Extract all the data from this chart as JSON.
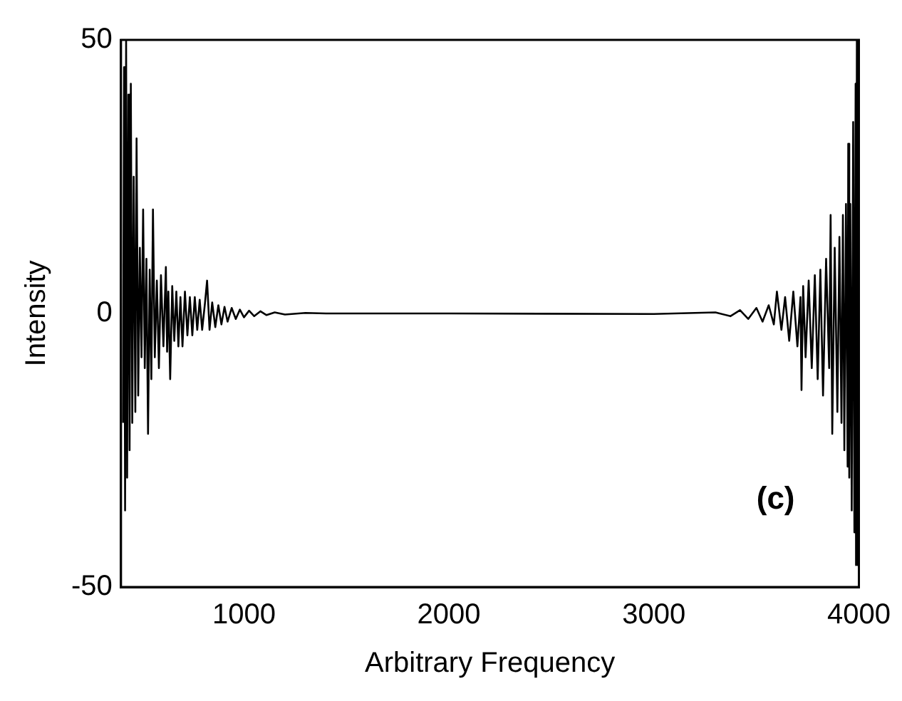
{
  "chart_data": {
    "type": "line",
    "xlabel": "Arbitrary Frequency",
    "ylabel": "Intensity",
    "annotations": [
      "(c)"
    ],
    "xlim": [
      400,
      4000
    ],
    "ylim": [
      -50,
      50
    ],
    "xticks": [
      1000,
      2000,
      3000,
      4000
    ],
    "yticks": [
      -50,
      0,
      50
    ],
    "grid": false,
    "legend": false,
    "marker": "none",
    "line_style": "solid",
    "series": [
      {
        "color": "#000000",
        "x": [
          410,
          415,
          420,
          425,
          430,
          436,
          442,
          448,
          455,
          462,
          470,
          476,
          484,
          492,
          500,
          508,
          516,
          524,
          532,
          540,
          548,
          556,
          565,
          575,
          585,
          595,
          607,
          619,
          625,
          631,
          640,
          650,
          660,
          670,
          680,
          690,
          700,
          712,
          724,
          736,
          748,
          760,
          772,
          784,
          796,
          810,
          820,
          832,
          845,
          860,
          875,
          890,
          905,
          920,
          940,
          960,
          980,
          1000,
          1025,
          1050,
          1080,
          1110,
          1150,
          1200,
          1300,
          1400,
          1600,
          2000,
          3000,
          3300,
          3373,
          3420,
          3460,
          3500,
          3530,
          3560,
          3585,
          3600,
          3622,
          3640,
          3660,
          3680,
          3700,
          3715,
          3720,
          3728,
          3740,
          3755,
          3770,
          3785,
          3799,
          3812,
          3825,
          3840,
          3855,
          3862,
          3870,
          3882,
          3895,
          3905,
          3915,
          3922,
          3929,
          3937,
          3945,
          3948,
          3953,
          3958,
          3965,
          3972,
          3978,
          3984,
          3986,
          3990,
          3994,
          3998
        ],
        "values": [
          -20,
          45,
          -36,
          50,
          -30,
          40,
          -25,
          42,
          -20,
          25,
          -18,
          32,
          -15,
          12,
          -8,
          19,
          -10,
          10,
          -22,
          8,
          -12,
          19,
          -8,
          6,
          -10,
          7,
          -6,
          8.5,
          -7,
          4,
          -12,
          5,
          -5,
          4,
          -6,
          3,
          -6,
          4,
          -4,
          3,
          -4,
          3,
          -3,
          2.5,
          -3,
          2,
          6,
          -3,
          2,
          -2.5,
          1.5,
          -2,
          1.2,
          -1.5,
          1,
          -1,
          0.7,
          -0.7,
          0.5,
          -0.5,
          0.4,
          -0.3,
          0.2,
          -0.2,
          0.1,
          0,
          0,
          0,
          -0.1,
          0.2,
          -0.5,
          0.6,
          -1,
          1,
          -1.5,
          1.5,
          -2,
          4,
          -3,
          3,
          -5,
          4,
          -6,
          3,
          -14,
          5,
          -8,
          6,
          -10,
          7,
          -12,
          8,
          -15,
          10,
          -10,
          18,
          -22,
          12,
          -18,
          14,
          -20,
          18,
          -25,
          20,
          -28,
          31,
          -30,
          20,
          -36,
          35,
          -40,
          42,
          -46,
          50,
          -46,
          40
        ]
      }
    ]
  }
}
